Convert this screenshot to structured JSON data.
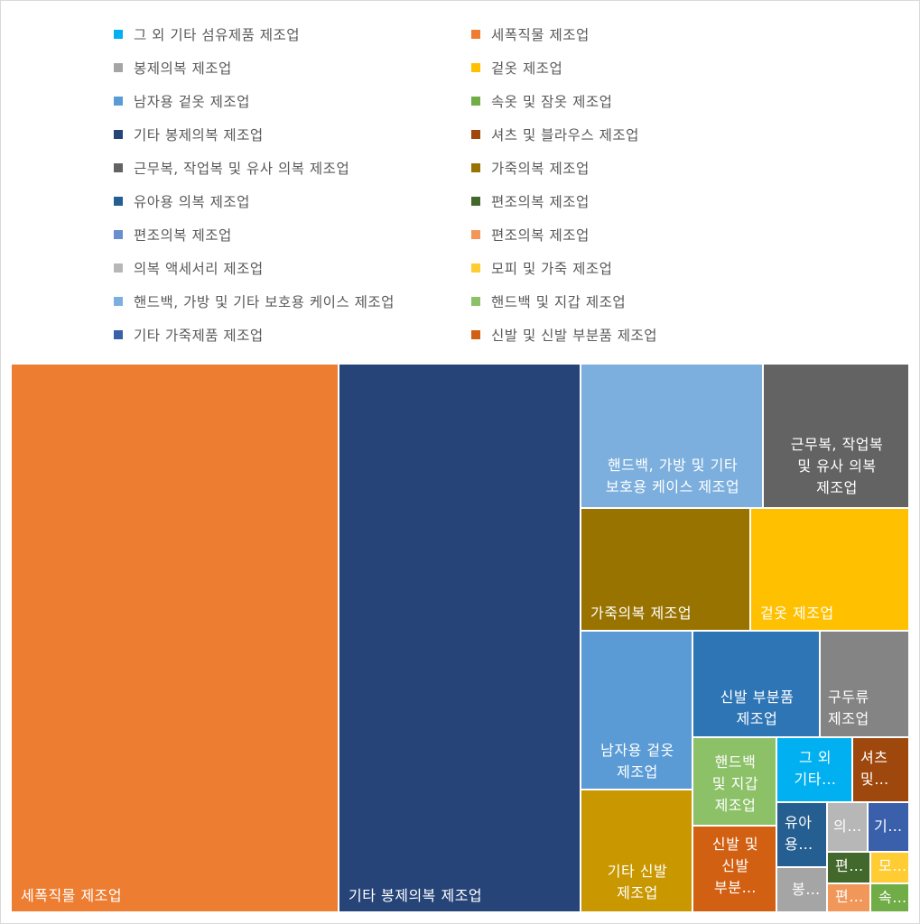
{
  "chart_data": {
    "type": "treemap",
    "legend_placement": "top",
    "legend": [
      {
        "label": "그 외 기타 섬유제품 제조업",
        "color": "#00B0F0"
      },
      {
        "label": "세폭직물 제조업",
        "color": "#ED7D31"
      },
      {
        "label": "봉제의복 제조업",
        "color": "#A5A5A5"
      },
      {
        "label": "겉옷 제조업",
        "color": "#FFC000"
      },
      {
        "label": "남자용 겉옷 제조업",
        "color": "#5B9BD5"
      },
      {
        "label": "속옷 및 잠옷 제조업",
        "color": "#70AD47"
      },
      {
        "label": "기타 봉제의복 제조업",
        "color": "#264478"
      },
      {
        "label": "셔츠 및 블라우스 제조업",
        "color": "#9E480E"
      },
      {
        "label": "근무복, 작업복 및 유사 의복 제조업",
        "color": "#636363"
      },
      {
        "label": "가죽의복 제조업",
        "color": "#997300"
      },
      {
        "label": "유아용 의복 제조업",
        "color": "#255E91"
      },
      {
        "label": "편조의복 제조업",
        "color": "#43682B"
      },
      {
        "label": "편조의복 제조업",
        "color": "#698ED0"
      },
      {
        "label": "편조의복 제조업",
        "color": "#F1975A"
      },
      {
        "label": "의복 액세서리 제조업",
        "color": "#B7B7B7"
      },
      {
        "label": "모피 및 가죽 제조업",
        "color": "#FFCD33"
      },
      {
        "label": "핸드백, 가방 및 기타 보호용 케이스 제조업",
        "color": "#7CAFDD"
      },
      {
        "label": "핸드백 및 지갑 제조업",
        "color": "#8CC168"
      },
      {
        "label": "기타 가죽제품 제조업",
        "color": "#3A5FAB"
      },
      {
        "label": "신발 및 신발 부분품 제조업",
        "color": "#D26012"
      }
    ],
    "cells": [
      {
        "name": "세폭직물 제조업",
        "label": "세폭직물 제조업",
        "color": "#ED7D31",
        "value": 22.5
      },
      {
        "name": "기타 봉제의복 제조업",
        "label": "기타 봉제의복 제조업",
        "color": "#264478",
        "value": 16.7
      },
      {
        "name": "핸드백, 가방 및 기타 보호용 케이스 제조업",
        "label": "핸드백, 가방 및 기타\n보호용 케이스 제조업",
        "color": "#7CAFDD",
        "value": 5.2
      },
      {
        "name": "근무복, 작업복 및 유사 의복 제조업",
        "label": "근무복, 작업복\n및 유사 의복\n제조업",
        "color": "#636363",
        "value": 4.1
      },
      {
        "name": "가죽의복 제조업",
        "label": "가죽의복 제조업",
        "color": "#997300",
        "value": 4.2
      },
      {
        "name": "겉옷 제조업",
        "label": "겉옷 제조업",
        "color": "#FFC000",
        "value": 3.9
      },
      {
        "name": "남자용 겉옷 제조업",
        "label": "남자용 겉옷\n제조업",
        "color": "#5B9BD5",
        "value": 3.4
      },
      {
        "name": "기타 신발 제조업",
        "label": "기타 신발\n제조업",
        "color": "#C99700",
        "value": 2.6
      },
      {
        "name": "신발 부분품 제조업",
        "label": "신발 부분품\n제조업",
        "color": "#2E75B6",
        "value": 2.4
      },
      {
        "name": "구두류 제조업",
        "label": "구두류\n제조업",
        "color": "#848484",
        "value": 1.8
      },
      {
        "name": "핸드백 및 지갑 제조업",
        "label": "핸드백\n및 지갑\n제조업",
        "color": "#8CC168",
        "value": 1.4
      },
      {
        "name": "신발 및 신발 부분품 제조업",
        "label": "신발 및\n신발\n부분…",
        "color": "#D26012",
        "value": 1.5
      },
      {
        "name": "그 외 기타 섬유제품 제조업",
        "label": "그 외\n기타…",
        "color": "#00B0F0",
        "value": 1.0
      },
      {
        "name": "셔츠 및 블라우스 제조업",
        "label": "셔츠\n및…",
        "color": "#9E480E",
        "value": 0.8
      },
      {
        "name": "유아용 의복 제조업",
        "label": "유아\n용…",
        "color": "#255E91",
        "value": 0.6
      },
      {
        "name": "봉제의복 제조업",
        "label": "봉…",
        "color": "#A5A5A5",
        "value": 0.5
      },
      {
        "name": "의복 액세서리 제조업",
        "label": "의…",
        "color": "#B7B7B7",
        "value": 0.35
      },
      {
        "name": "기타 가죽제품 제조업",
        "label": "기…",
        "color": "#3A5FAB",
        "value": 0.3
      },
      {
        "name": "편조의복 제조업",
        "label": "편…",
        "color": "#43682B",
        "value": 0.2
      },
      {
        "name": "모피 및 가죽 제조업",
        "label": "모…",
        "color": "#FFCD33",
        "value": 0.2
      },
      {
        "name": "편조의복 제조업",
        "label": "편…",
        "color": "#F1975A",
        "value": 0.2
      },
      {
        "name": "속옷 및 잠옷 제조업",
        "label": "속…",
        "color": "#70AD47",
        "value": 0.15
      }
    ]
  }
}
